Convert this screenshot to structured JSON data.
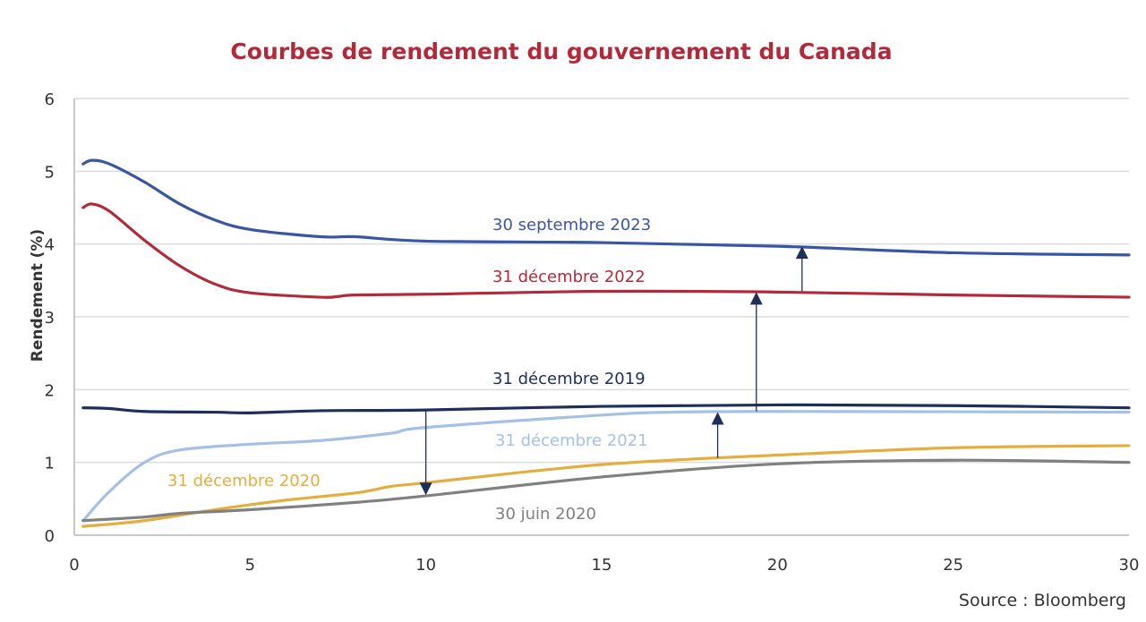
{
  "chart_data": {
    "type": "line",
    "title": "Courbes de rendement du gouvernement du Canada",
    "xlabel": "",
    "ylabel": "Rendement (%)",
    "xlim": [
      0,
      30
    ],
    "ylim": [
      0,
      6
    ],
    "xticks": [
      0,
      5,
      10,
      15,
      20,
      25,
      30
    ],
    "yticks": [
      0,
      1,
      2,
      3,
      4,
      5,
      6
    ],
    "grid": true,
    "source": "Source : Bloomberg",
    "series": [
      {
        "name": "30 septembre 2023",
        "color": "#3a55a4",
        "x": [
          0.25,
          0.5,
          1,
          2,
          3,
          4,
          5,
          7,
          8,
          10,
          15,
          20,
          25,
          30
        ],
        "y": [
          5.1,
          5.15,
          5.1,
          4.85,
          4.55,
          4.33,
          4.2,
          4.1,
          4.1,
          4.04,
          4.02,
          3.97,
          3.88,
          3.85
        ]
      },
      {
        "name": "31 décembre 2022",
        "color": "#b22a3a",
        "x": [
          0.25,
          0.5,
          1,
          2,
          3,
          4,
          5,
          7,
          7.5,
          8,
          10,
          15,
          20,
          25,
          30
        ],
        "y": [
          4.5,
          4.55,
          4.45,
          4.05,
          3.7,
          3.45,
          3.33,
          3.27,
          3.28,
          3.3,
          3.31,
          3.35,
          3.34,
          3.3,
          3.27
        ]
      },
      {
        "name": "31 décembre 2019",
        "color": "#1d2f5a",
        "x": [
          0.25,
          1,
          2,
          4,
          5,
          7,
          10,
          15,
          20,
          25,
          30
        ],
        "y": [
          1.75,
          1.74,
          1.7,
          1.69,
          1.68,
          1.71,
          1.72,
          1.77,
          1.79,
          1.78,
          1.75
        ]
      },
      {
        "name": "31 décembre 2021",
        "color": "#a5c0e6",
        "x": [
          0.25,
          1,
          2,
          3,
          5,
          7,
          9,
          10,
          15,
          17,
          20,
          30
        ],
        "y": [
          0.2,
          0.6,
          1.0,
          1.17,
          1.25,
          1.3,
          1.4,
          1.48,
          1.65,
          1.69,
          1.7,
          1.69
        ]
      },
      {
        "name": "31 décembre 2020",
        "color": "#e5ad3e",
        "x": [
          0.25,
          2,
          4,
          6,
          8,
          9,
          10,
          15,
          20,
          25,
          30
        ],
        "y": [
          0.12,
          0.2,
          0.35,
          0.48,
          0.58,
          0.67,
          0.72,
          0.97,
          1.1,
          1.2,
          1.23
        ]
      },
      {
        "name": "30 juin 2020",
        "color": "#808080",
        "x": [
          0.25,
          2,
          3,
          5,
          8,
          10,
          15,
          20,
          25,
          30
        ],
        "y": [
          0.2,
          0.25,
          0.3,
          0.35,
          0.45,
          0.54,
          0.8,
          0.98,
          1.03,
          1.0
        ]
      }
    ],
    "annotations": [
      {
        "type": "arrow",
        "x": 10,
        "from": 1.72,
        "to": 0.55
      },
      {
        "type": "arrow",
        "x": 18.3,
        "from": 1.06,
        "to": 1.69
      },
      {
        "type": "arrow",
        "x": 19.4,
        "from": 1.7,
        "to": 3.34
      },
      {
        "type": "arrow",
        "x": 20.7,
        "from": 3.35,
        "to": 3.97
      }
    ]
  }
}
